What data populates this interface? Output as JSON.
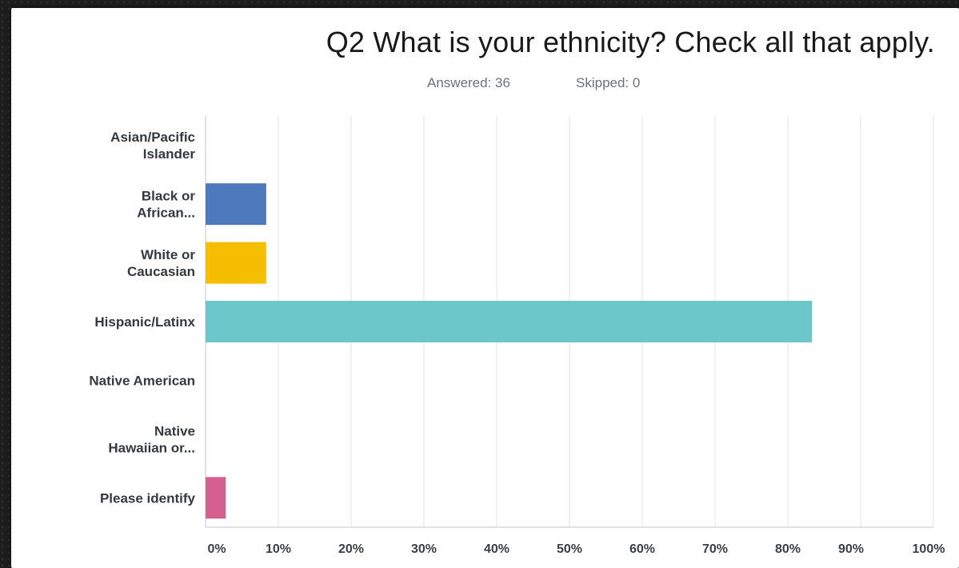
{
  "slide": {
    "title": "Q2 What is your ethnicity? Check all that apply.",
    "answered": "Answered: 36",
    "skipped": "Skipped: 0"
  },
  "chart_data": {
    "type": "bar",
    "orientation": "horizontal",
    "categories": [
      [
        "Asian/Pacific",
        "Islander"
      ],
      [
        "Black or",
        "African..."
      ],
      [
        "White or",
        "Caucasian"
      ],
      [
        "Hispanic/Latinx"
      ],
      [
        "Native American"
      ],
      [
        "Native",
        "Hawaiian or..."
      ],
      [
        "Please identify"
      ]
    ],
    "values": [
      0,
      8.33,
      8.33,
      83.33,
      0,
      0,
      2.78
    ],
    "colors": [
      "#5b7fc0",
      "#4f79bd",
      "#f5bf00",
      "#6cc7cb",
      "#8d6bb5",
      "#7ab56a",
      "#d5608f"
    ],
    "xlim": [
      0,
      100
    ],
    "xticks": [
      "0%",
      "10%",
      "20%",
      "30%",
      "40%",
      "50%",
      "60%",
      "70%",
      "80%",
      "90%",
      "100%"
    ],
    "grid": true,
    "title": "Q2 What is your ethnicity? Check all that apply.",
    "xlabel": "",
    "ylabel": ""
  }
}
